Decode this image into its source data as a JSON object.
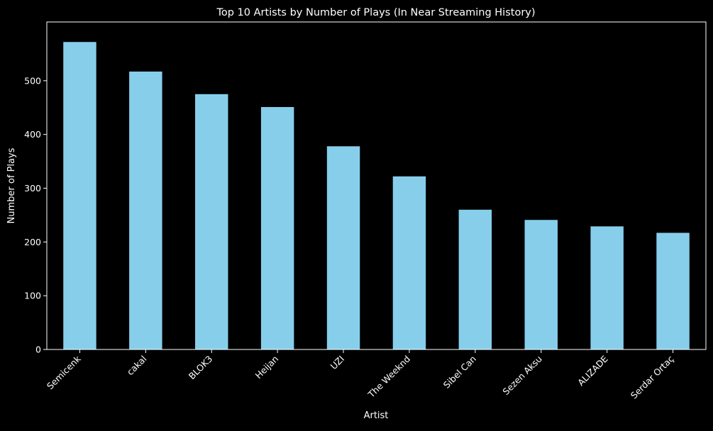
{
  "chart_data": {
    "type": "bar",
    "title": "Top 10 Artists by Number of Plays (In Near Streaming History)",
    "xlabel": "Artist",
    "ylabel": "Number of Plays",
    "categories": [
      "Semicenk",
      "cakal",
      "BLOK3",
      "Heijan",
      "UZI",
      "The Weeknd",
      "Sibel Can",
      "Sezen Aksu",
      "ALIZADE",
      "Serdar Ortaç"
    ],
    "values": [
      572,
      517,
      475,
      451,
      378,
      322,
      260,
      241,
      229,
      217
    ],
    "ylim": [
      0,
      600
    ],
    "yticks": [
      0,
      100,
      200,
      300,
      400,
      500
    ],
    "grid": false,
    "colors": {
      "background": "#000000",
      "bar": "#87CEEB",
      "axis": "#ffffff",
      "text": "#ffffff"
    }
  }
}
